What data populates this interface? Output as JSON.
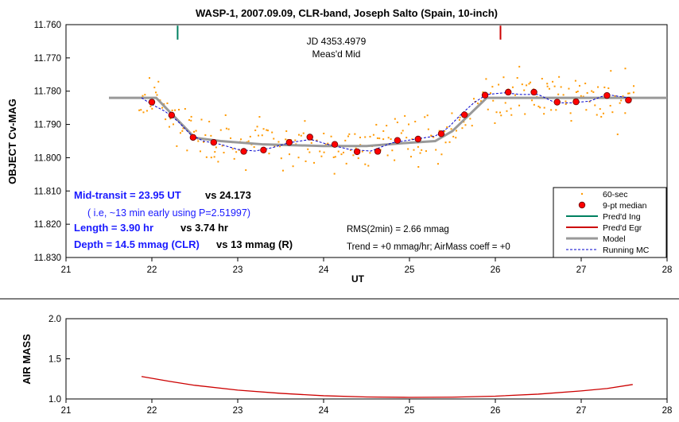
{
  "title": "WASP-1, 2007.09.09, CLR-band, Joseph Salto (Spain, 10-inch)",
  "chart_data": [
    {
      "type": "scatter",
      "xlabel": "UT",
      "ylabel": "OBJECT Cv-MAG",
      "xlim": [
        21,
        28
      ],
      "ylim": [
        11.76,
        11.83
      ],
      "y_inverted": true,
      "grid": false,
      "x_ticks": [
        "21",
        "22",
        "23",
        "24",
        "25",
        "26",
        "27",
        "28"
      ],
      "y_ticks": [
        "11.760",
        "11.770",
        "11.780",
        "11.790",
        "11.800",
        "11.810",
        "11.820",
        "11.830"
      ],
      "legend_position": "bottom-right",
      "legend": [
        "60-sec",
        "9-pt median",
        "Pred'd Ing",
        "Pred'd Egr",
        "Model",
        "Running MC"
      ],
      "series": [
        {
          "name": "Model",
          "color": "#999999",
          "points": [
            [
              21.5,
              11.782
            ],
            [
              22.05,
              11.782
            ],
            [
              22.5,
              11.794
            ],
            [
              22.8,
              11.795
            ],
            [
              23.3,
              11.796
            ],
            [
              24.0,
              11.7965
            ],
            [
              24.5,
              11.7965
            ],
            [
              25.0,
              11.7955
            ],
            [
              25.3,
              11.795
            ],
            [
              25.5,
              11.792
            ],
            [
              25.9,
              11.782
            ],
            [
              28.0,
              11.782
            ]
          ]
        },
        {
          "name": "9-pt median",
          "color": "#ff0000",
          "points": [
            [
              22.0,
              11.7833
            ],
            [
              22.23,
              11.7872
            ],
            [
              22.48,
              11.7939
            ],
            [
              22.72,
              11.7954
            ],
            [
              23.07,
              11.7981
            ],
            [
              23.3,
              11.7977
            ],
            [
              23.6,
              11.7954
            ],
            [
              23.84,
              11.7938
            ],
            [
              24.13,
              11.796
            ],
            [
              24.39,
              11.7982
            ],
            [
              24.63,
              11.7981
            ],
            [
              24.86,
              11.7948
            ],
            [
              25.1,
              11.7944
            ],
            [
              25.37,
              11.7928
            ],
            [
              25.64,
              11.7871
            ],
            [
              25.88,
              11.7812
            ],
            [
              26.15,
              11.7803
            ],
            [
              26.45,
              11.7803
            ],
            [
              26.72,
              11.7833
            ],
            [
              26.94,
              11.7832
            ],
            [
              27.3,
              11.7813
            ],
            [
              27.55,
              11.7827
            ]
          ]
        },
        {
          "name": "Running MC",
          "color": "#0000cc",
          "points": [
            [
              21.88,
              11.782
            ],
            [
              22.0,
              11.784
            ],
            [
              22.15,
              11.786
            ],
            [
              22.3,
              11.789
            ],
            [
              22.45,
              11.793
            ],
            [
              22.6,
              11.795
            ],
            [
              22.8,
              11.796
            ],
            [
              23.0,
              11.7975
            ],
            [
              23.2,
              11.798
            ],
            [
              23.4,
              11.797
            ],
            [
              23.6,
              11.7955
            ],
            [
              23.85,
              11.7945
            ],
            [
              24.05,
              11.796
            ],
            [
              24.3,
              11.7975
            ],
            [
              24.55,
              11.798
            ],
            [
              24.8,
              11.7955
            ],
            [
              25.05,
              11.7945
            ],
            [
              25.3,
              11.7935
            ],
            [
              25.45,
              11.791
            ],
            [
              25.6,
              11.787
            ],
            [
              25.75,
              11.7835
            ],
            [
              25.9,
              11.781
            ],
            [
              26.1,
              11.7805
            ],
            [
              26.3,
              11.781
            ],
            [
              26.5,
              11.781
            ],
            [
              26.7,
              11.7835
            ],
            [
              26.9,
              11.7835
            ],
            [
              27.1,
              11.783
            ],
            [
              27.3,
              11.781
            ],
            [
              27.55,
              11.782
            ]
          ]
        },
        {
          "name": "Pred'd Ing",
          "color": "#008060",
          "x": 22.3
        },
        {
          "name": "Pred'd Egr",
          "color": "#cc0000",
          "x": 26.06
        },
        {
          "name": "60-sec",
          "color": "#ff9900",
          "description_n": 300
        }
      ],
      "annotations": {
        "jd_line1": "JD 4353.4979",
        "jd_line2": "Meas'd Mid",
        "mid_main": "Mid-transit = 23.95 UT",
        "mid_vs": "vs 24.173",
        "mid_note": "( i.e, ~13 min early using P=2.51997)",
        "len_main": "Length = 3.90 hr",
        "len_vs": "vs 3.74 hr",
        "depth_main": "Depth = 14.5 mmag (CLR)",
        "depth_vs": "vs 13 mmag (R)",
        "rms": "RMS(2min) = 2.66 mmag",
        "trend": "Trend = +0 mmag/hr; AirMass coeff = +0"
      },
      "colors": {
        "annotation_blue": "#1a1aff",
        "axis": "#000000",
        "plot_bg": "#ffffff"
      }
    },
    {
      "type": "line",
      "xlabel": "",
      "ylabel": "AIR MASS",
      "xlim": [
        21,
        28
      ],
      "ylim": [
        1.0,
        2.0
      ],
      "grid": false,
      "x_ticks": [
        "21",
        "22",
        "23",
        "24",
        "25",
        "26",
        "27",
        "28"
      ],
      "y_ticks": [
        "1.0",
        "1.5",
        "2.0"
      ],
      "series": [
        {
          "name": "",
          "color": "#cc0000",
          "points": [
            [
              21.88,
              1.28
            ],
            [
              22.2,
              1.22
            ],
            [
              22.5,
              1.17
            ],
            [
              23.0,
              1.11
            ],
            [
              23.5,
              1.07
            ],
            [
              24.0,
              1.04
            ],
            [
              24.5,
              1.025
            ],
            [
              25.0,
              1.02
            ],
            [
              25.5,
              1.022
            ],
            [
              26.0,
              1.035
            ],
            [
              26.5,
              1.06
            ],
            [
              27.0,
              1.1
            ],
            [
              27.3,
              1.13
            ],
            [
              27.6,
              1.18
            ]
          ]
        }
      ]
    }
  ]
}
